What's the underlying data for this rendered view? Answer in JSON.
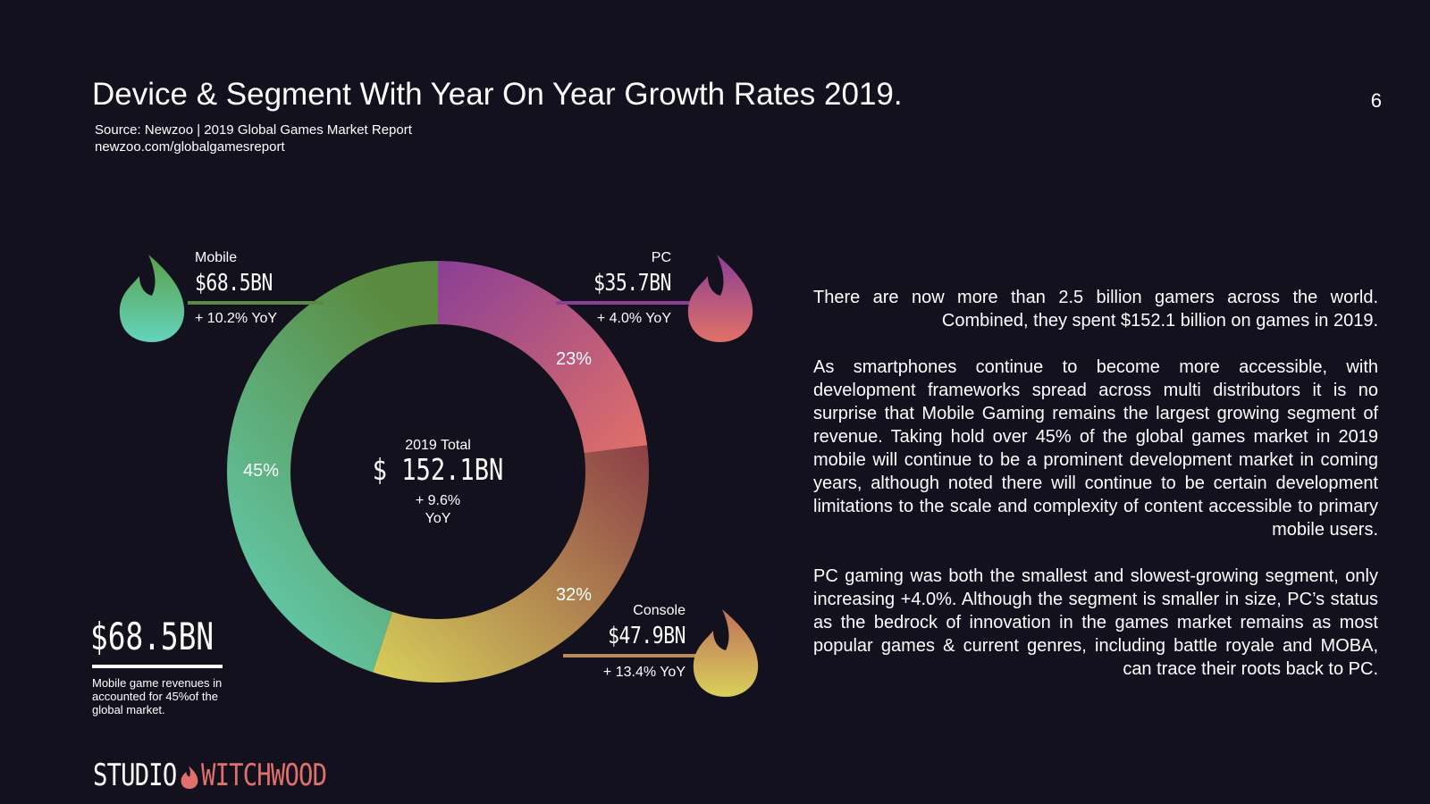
{
  "header": {
    "title": "Device & Segment With Year On Year Growth Rates 2019.",
    "page_number": "6",
    "source_line1": "Source: Newzoo | 2019 Global Games Market Report",
    "source_line2": "newzoo.com/globalgamesreport"
  },
  "chart_data": {
    "type": "pie",
    "title": "",
    "total_label": "2019 Total",
    "total_value": "$ 152.1BN",
    "total_growth_line1": "+ 9.6%",
    "total_growth_line2": "YoY",
    "slices": [
      {
        "name": "Mobile",
        "value_label": "$68.5BN",
        "value": 68.5,
        "growth": "+ 10.2% YoY",
        "percent": 45,
        "percent_label": "45%"
      },
      {
        "name": "PC",
        "value_label": "$35.7BN",
        "value": 35.7,
        "growth": "+ 4.0% YoY",
        "percent": 23,
        "percent_label": "23%"
      },
      {
        "name": "Console",
        "value_label": "$47.9BN",
        "value": 47.9,
        "growth": "+ 13.4% YoY",
        "percent": 32,
        "percent_label": "32%"
      }
    ],
    "colors": {
      "pc_start": "#8a3f96",
      "pc_end": "#e17067",
      "console_start": "#8c3f47",
      "console_end": "#d8d05a",
      "mobile_start": "#63d4bc",
      "mobile_end": "#5a8a3f"
    }
  },
  "callout": {
    "value": "$68.5BN",
    "caption": "Mobile game revenues in accounted for 45%of the global market."
  },
  "body": {
    "p1": "There are now more than 2.5 billion gamers across the world. Combined, they spent $152.1 billion on games in 2019.",
    "p2": "As smartphones continue to become more accessible, with development frameworks spread across multi distributors it is no surprise that Mobile Gaming remains the largest growing segment of revenue. Taking hold over 45% of the global games market in 2019 mobile will continue to be a prominent development market in coming years, although noted there will continue to be certain development limitations to the scale and complexity of content accessible to primary mobile users.",
    "p3": "PC gaming was  both the smallest and slowest-growing segment, only increasing +4.0%. Although the segment is  smaller in size, PC’s status as the bedrock of innovation in the games market remains as  most popular games & current genres, including battle royale and MOBA, can trace their roots back to PC."
  },
  "logo": {
    "part1": "STUDIO",
    "part2": "WITCHWOOD"
  },
  "icons": [
    "flame-icon"
  ]
}
